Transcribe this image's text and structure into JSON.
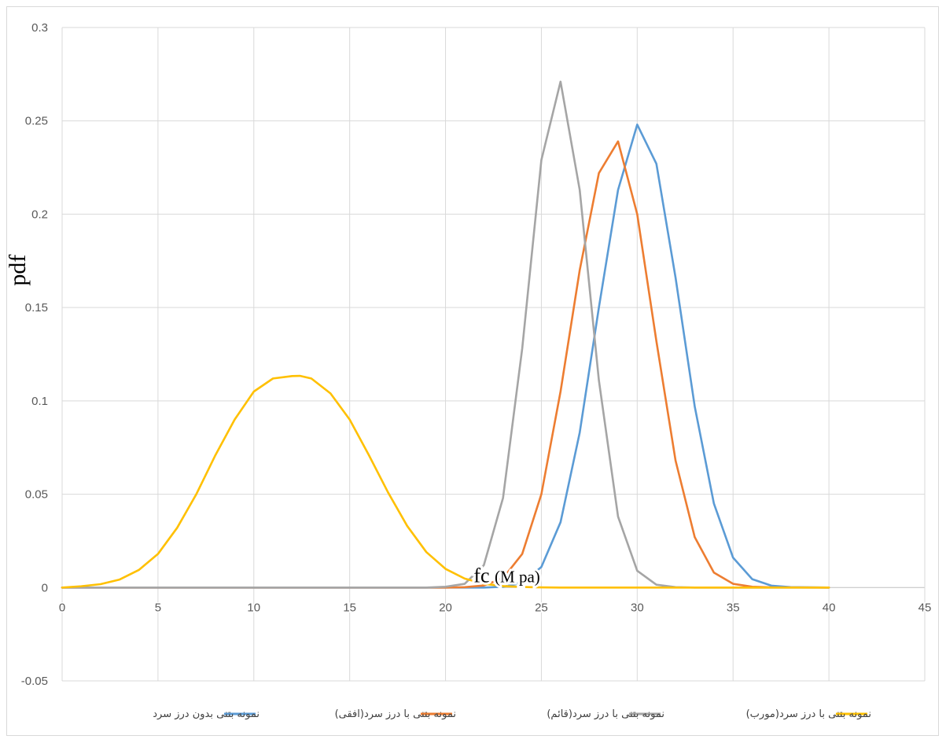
{
  "chart_data": {
    "type": "line",
    "title": "",
    "ylabel": "pdf",
    "xlabel": "fc",
    "xlabel_unit": "(M pa)",
    "xlim": [
      0,
      45
    ],
    "ylim": [
      -0.05,
      0.3
    ],
    "x_ticks": [
      "0",
      "5",
      "10",
      "15",
      "20",
      "25",
      "30",
      "35",
      "40",
      "45"
    ],
    "y_ticks": [
      "-0.05",
      "0",
      "0.05",
      "0.1",
      "0.15",
      "0.2",
      "0.25",
      "0.3"
    ],
    "grid": true,
    "legend_position": "bottom",
    "series": [
      {
        "name": "نمونه بتنی بدون درز سرد",
        "color": "#5b9bd5",
        "x": [
          0,
          22,
          23,
          24,
          25,
          26,
          27,
          28,
          29,
          30,
          31,
          32,
          33,
          34,
          35,
          36,
          37,
          38,
          40
        ],
        "y": [
          0,
          0,
          0.0004,
          0.0025,
          0.011,
          0.035,
          0.083,
          0.15,
          0.213,
          0.248,
          0.227,
          0.166,
          0.097,
          0.045,
          0.016,
          0.0045,
          0.001,
          0.0002,
          0
        ]
      },
      {
        "name": "نمونه بتنی با درز سرد(افقی)",
        "color": "#ed7d31",
        "x": [
          0,
          20,
          21,
          22,
          23,
          24,
          25,
          26,
          27,
          28,
          29,
          30,
          31,
          32,
          33,
          34,
          35,
          36,
          37,
          40
        ],
        "y": [
          0,
          0,
          0.0002,
          0.0011,
          0.005,
          0.018,
          0.05,
          0.105,
          0.17,
          0.222,
          0.239,
          0.2,
          0.132,
          0.068,
          0.027,
          0.008,
          0.002,
          0.0004,
          0.0001,
          0
        ]
      },
      {
        "name": "نمونه بتنی با درز سرد(قائم)",
        "color": "#a5a5a5",
        "x": [
          0,
          19,
          20,
          21,
          22,
          23,
          24,
          25,
          26,
          27,
          28,
          29,
          30,
          31,
          32,
          33,
          34,
          40
        ],
        "y": [
          0,
          0,
          0.0004,
          0.002,
          0.012,
          0.048,
          0.128,
          0.229,
          0.271,
          0.213,
          0.111,
          0.038,
          0.009,
          0.0015,
          0.0002,
          0,
          0,
          0
        ]
      },
      {
        "name": "نمونه بتنی با درز سرد(مورب)",
        "color": "#ffc000",
        "x": [
          0,
          1,
          2,
          3,
          4,
          5,
          6,
          7,
          8,
          9,
          10,
          11,
          12,
          12.4,
          13,
          14,
          15,
          16,
          17,
          18,
          19,
          20,
          21,
          22,
          23,
          24,
          25,
          26,
          28,
          30,
          35,
          40
        ],
        "y": [
          0,
          0.0007,
          0.0018,
          0.0043,
          0.0094,
          0.018,
          0.032,
          0.05,
          0.071,
          0.09,
          0.105,
          0.112,
          0.1133,
          0.1134,
          0.112,
          0.104,
          0.09,
          0.071,
          0.051,
          0.033,
          0.019,
          0.01,
          0.0048,
          0.002,
          0.0008,
          0.0003,
          0.0001,
          0,
          0,
          0,
          0,
          0
        ]
      }
    ]
  }
}
